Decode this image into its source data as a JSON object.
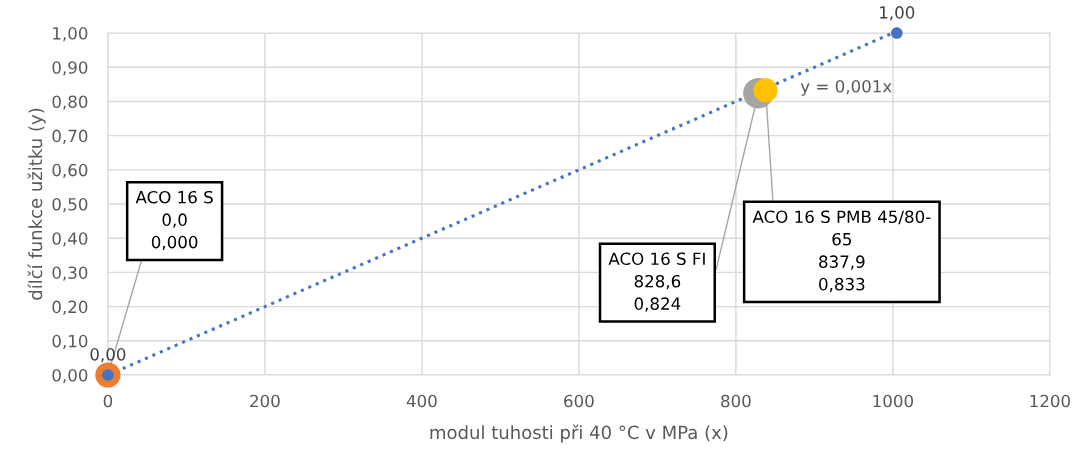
{
  "chart_data": {
    "type": "scatter",
    "xlabel": "modul tuhosti při 40 °C v MPa (x)",
    "ylabel": "dílčí funkce užitku (y)",
    "xlim": [
      0,
      1200
    ],
    "xticks": [
      0,
      200,
      400,
      600,
      800,
      1000,
      1200
    ],
    "ylim": [
      0,
      1.0
    ],
    "yticks": [
      {
        "value": 0,
        "label": "0,00"
      },
      {
        "value": 0.1,
        "label": "0,10"
      },
      {
        "value": 0.2,
        "label": "0,20"
      },
      {
        "value": 0.3,
        "label": "0,30"
      },
      {
        "value": 0.4,
        "label": "0,40"
      },
      {
        "value": 0.5,
        "label": "0,50"
      },
      {
        "value": 0.6,
        "label": "0,60"
      },
      {
        "value": 0.7,
        "label": "0,70"
      },
      {
        "value": 0.8,
        "label": "0,80"
      },
      {
        "value": 0.9,
        "label": "0,90"
      },
      {
        "value": 1.0,
        "label": "1,00"
      }
    ],
    "grid": true,
    "marker": "circle",
    "series": [
      {
        "color": "#ed7d31",
        "x": [
          0
        ],
        "values": [
          0
        ]
      },
      {
        "color": "#a5a5a5",
        "x": [
          828.6
        ],
        "values": [
          0.824
        ]
      },
      {
        "color": "#ffc000",
        "x": [
          837.9
        ],
        "values": [
          0.833
        ]
      },
      {
        "type": "line",
        "color": "#4472c4",
        "line_style": "dotted",
        "marker": "none",
        "x": [
          0,
          1000
        ],
        "values": [
          0,
          1.0
        ]
      },
      {
        "color": "#4472c4",
        "x": [
          0,
          1005
        ],
        "values": [
          0,
          1.0
        ],
        "value_labels": [
          "0,00",
          "1,00"
        ]
      }
    ],
    "annotations": [
      {
        "text": "ACO 16 S\n0,0\n0,000",
        "x": 0,
        "y": 0
      },
      {
        "text": "ACO 16 S FI\n828,6\n0,824",
        "x": 828.6,
        "y": 0.824
      },
      {
        "text": "ACO 16 S PMB 45/80-\n65\n837,9\n0,833",
        "x": 837.9,
        "y": 0.833
      },
      "y = 0,001x"
    ]
  }
}
